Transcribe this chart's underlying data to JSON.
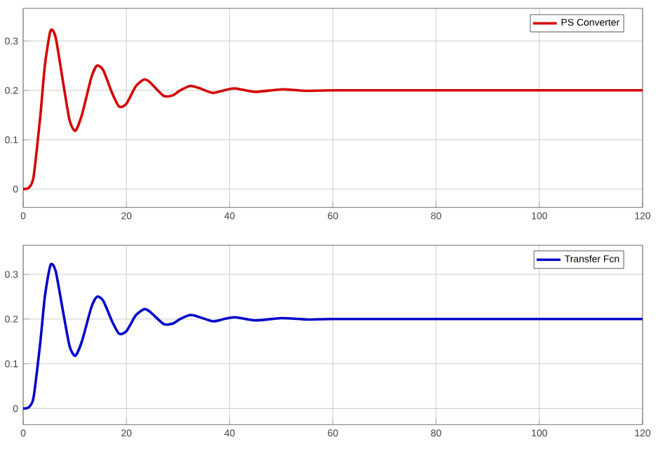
{
  "chart_data": [
    {
      "type": "line",
      "x": [
        0,
        1.1,
        2,
        3.3,
        4.2,
        5.3,
        6.3,
        7.8,
        9,
        10.1,
        11.4,
        13.2,
        14.3,
        15.5,
        17.3,
        18.6,
        20,
        21.8,
        23.4,
        24.5,
        27.2,
        29,
        30.4,
        32.4,
        34,
        36.7,
        38.9,
        41,
        45,
        50,
        55,
        60,
        80,
        100,
        120
      ],
      "series": [
        {
          "name": "PS Converter",
          "color": "#d40000",
          "values": [
            0,
            0.003,
            0.024,
            0.146,
            0.25,
            0.321,
            0.307,
            0.212,
            0.139,
            0.118,
            0.151,
            0.226,
            0.25,
            0.241,
            0.193,
            0.167,
            0.173,
            0.208,
            0.222,
            0.217,
            0.189,
            0.19,
            0.2,
            0.209,
            0.205,
            0.195,
            0.2,
            0.204,
            0.197,
            0.202,
            0.199,
            0.2,
            0.2,
            0.2,
            0.2
          ]
        }
      ],
      "xlim": [
        0,
        120
      ],
      "ylim": [
        -0.037,
        0.366
      ],
      "xticks": [
        0,
        20,
        40,
        60,
        80,
        100,
        120
      ],
      "yticks": [
        0,
        0.1,
        0.2,
        0.3
      ],
      "grid": true,
      "legend": "top right"
    },
    {
      "type": "line",
      "x": [
        0,
        1.1,
        2,
        3.3,
        4.2,
        5.3,
        6.3,
        7.8,
        9,
        10.1,
        11.4,
        13.2,
        14.3,
        15.5,
        17.3,
        18.6,
        20,
        21.8,
        23.4,
        24.5,
        27.2,
        29,
        30.4,
        32.4,
        34,
        36.7,
        38.9,
        41,
        45,
        50,
        55,
        60,
        80,
        100,
        120
      ],
      "series": [
        {
          "name": "Transfer Fcn",
          "color": "#0000cc",
          "values": [
            0,
            0.003,
            0.024,
            0.146,
            0.25,
            0.321,
            0.307,
            0.212,
            0.139,
            0.118,
            0.151,
            0.226,
            0.25,
            0.241,
            0.193,
            0.167,
            0.173,
            0.208,
            0.222,
            0.217,
            0.189,
            0.19,
            0.2,
            0.209,
            0.205,
            0.195,
            0.2,
            0.204,
            0.197,
            0.202,
            0.199,
            0.2,
            0.2,
            0.2,
            0.2
          ]
        }
      ],
      "xlim": [
        0,
        120
      ],
      "ylim": [
        -0.036,
        0.365
      ],
      "xticks": [
        0,
        20,
        40,
        60,
        80,
        100,
        120
      ],
      "yticks": [
        0,
        0.1,
        0.2,
        0.3
      ],
      "grid": true,
      "legend": "top right"
    }
  ]
}
